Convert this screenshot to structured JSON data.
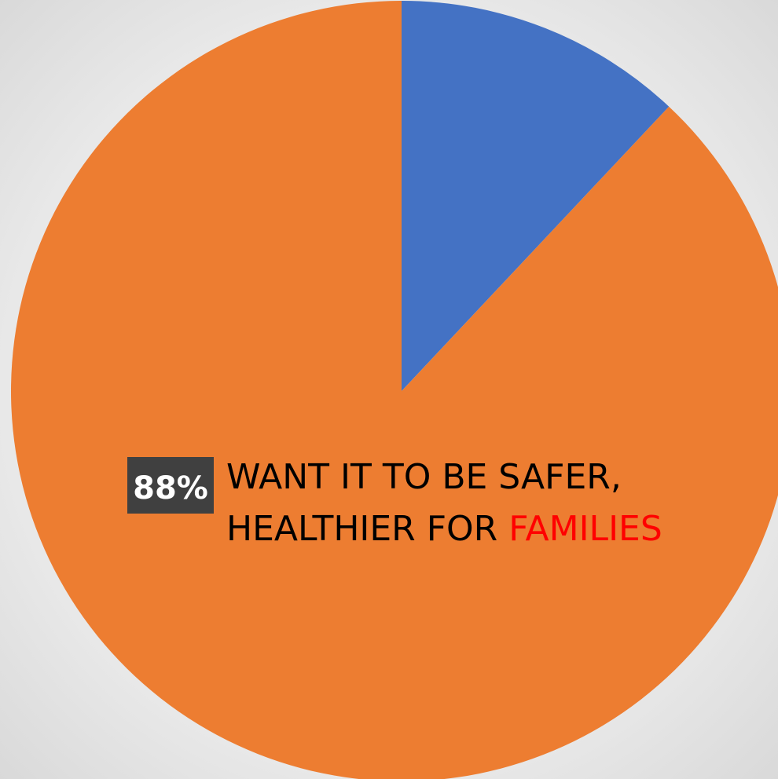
{
  "chart_data": {
    "type": "pie",
    "start": "12 o'clock",
    "direction": "clockwise",
    "slices": [
      {
        "value": 12,
        "color": "#4472C4"
      },
      {
        "value": 88,
        "color": "#ED7D31"
      }
    ],
    "data_label": {
      "value_text": "88%",
      "value_text_color": "#FFFFFF",
      "value_box_color": "#404040",
      "lines": [
        [
          {
            "text": "WANT IT TO BE SAFER,",
            "color": "#000000"
          }
        ],
        [
          {
            "text": "HEALTHIER FOR ",
            "color": "#000000"
          },
          {
            "text": "FAMILIES",
            "color": "#FF0000"
          }
        ]
      ]
    }
  }
}
